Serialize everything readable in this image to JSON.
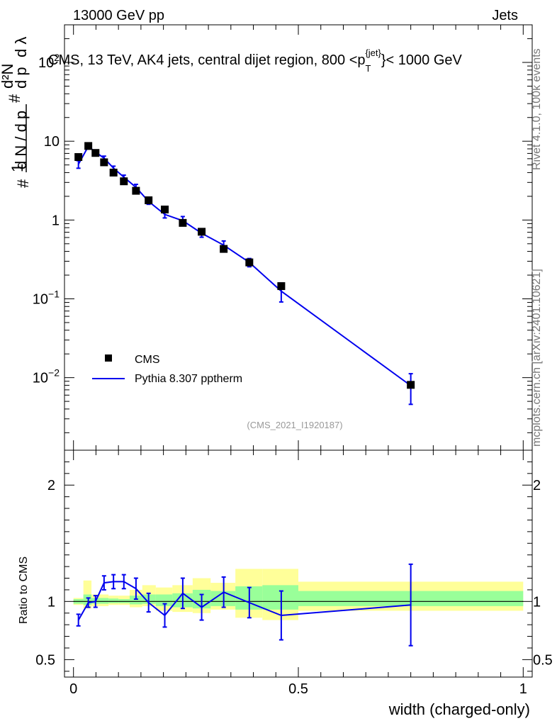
{
  "header": {
    "left": "13000 GeV pp",
    "right": "Jets"
  },
  "side": {
    "rivet": "Rivet 4.1.0,  100k events",
    "mcplots": "mcplots.cern.ch [arXiv:2401.10621]"
  },
  "watermark": "(CMS_2021_I1920187)",
  "chart_data": [
    {
      "type": "scatter",
      "panel": "main",
      "title_parts": {
        "pre": "CMS, 13 TeV, AK4 jets, central dijet region, 800 <p",
        "sub": "T",
        "sup": "{jet}",
        "post": "}< 1000 GeV"
      },
      "ylabel": "1/dN/dpT # d²N/dpT dλ",
      "yscale": "log",
      "ylim": [
        0.0012,
        300
      ],
      "xlim": [
        -0.02,
        1.02
      ],
      "ytick_labels": [
        {
          "v": 100,
          "base": "10",
          "exp": "2"
        },
        {
          "v": 10,
          "base": "10",
          "exp": ""
        },
        {
          "v": 1,
          "base": "1",
          "exp": ""
        },
        {
          "v": 0.1,
          "base": "10",
          "exp": "−1"
        },
        {
          "v": 0.01,
          "base": "10",
          "exp": "−2"
        }
      ],
      "legend": [
        {
          "name": "CMS",
          "marker": "square"
        },
        {
          "name": "Pythia 8.307 pptherm",
          "marker": "line"
        }
      ],
      "series": [
        {
          "name": "CMS",
          "x": [
            0.011,
            0.033,
            0.049,
            0.068,
            0.089,
            0.112,
            0.139,
            0.167,
            0.203,
            0.243,
            0.285,
            0.334,
            0.391,
            0.462,
            0.75
          ],
          "y": [
            6.3,
            8.7,
            7.1,
            5.4,
            4.0,
            3.1,
            2.35,
            1.78,
            1.36,
            0.92,
            0.71,
            0.43,
            0.29,
            0.145,
            0.0081
          ]
        },
        {
          "name": "Pythia 8.307 pptherm",
          "x": [
            0.011,
            0.033,
            0.049,
            0.068,
            0.089,
            0.112,
            0.139,
            0.167,
            0.203,
            0.243,
            0.285,
            0.334,
            0.391,
            0.462,
            0.75
          ],
          "y": [
            5.1,
            8.6,
            7.3,
            6.1,
            4.55,
            3.5,
            2.6,
            1.72,
            1.18,
            0.98,
            0.68,
            0.48,
            0.29,
            0.125,
            0.0079
          ],
          "err": [
            0.11,
            0.05,
            0.05,
            0.06,
            0.06,
            0.06,
            0.09,
            0.08,
            0.1,
            0.13,
            0.11,
            0.13,
            0.12,
            0.27,
            0.42
          ]
        }
      ]
    },
    {
      "type": "line",
      "panel": "ratio",
      "ylabel": "Ratio to CMS",
      "xlabel": "width (charged-only)",
      "ylim": [
        0.35,
        2.3
      ],
      "xlim": [
        -0.02,
        1.02
      ],
      "yticks": [
        0.5,
        1,
        2
      ],
      "ytick_labels": [
        "0.5",
        "1",
        "2"
      ],
      "xticks": [
        0,
        0.5,
        1
      ],
      "xtick_labels": [
        "0",
        "0.5",
        "1"
      ],
      "band_edges": [
        0,
        0.022,
        0.04,
        0.058,
        0.078,
        0.1,
        0.125,
        0.153,
        0.183,
        0.22,
        0.265,
        0.305,
        0.36,
        0.42,
        0.5,
        1.0
      ],
      "band_outer": [
        [
          0.97,
          1.03
        ],
        [
          0.94,
          1.18
        ],
        [
          0.96,
          1.06
        ],
        [
          0.96,
          1.06
        ],
        [
          0.97,
          1.05
        ],
        [
          0.97,
          1.05
        ],
        [
          0.95,
          1.1
        ],
        [
          0.96,
          1.14
        ],
        [
          0.92,
          1.12
        ],
        [
          0.91,
          1.14
        ],
        [
          0.9,
          1.2
        ],
        [
          0.93,
          1.16
        ],
        [
          0.86,
          1.28
        ],
        [
          0.84,
          1.28
        ],
        [
          0.92,
          1.17
        ]
      ],
      "band_inner": [
        [
          0.98,
          1.02
        ],
        [
          0.97,
          1.06
        ],
        [
          0.98,
          1.03
        ],
        [
          0.98,
          1.03
        ],
        [
          0.985,
          1.025
        ],
        [
          0.985,
          1.02
        ],
        [
          0.975,
          1.05
        ],
        [
          0.98,
          1.06
        ],
        [
          0.96,
          1.06
        ],
        [
          0.95,
          1.07
        ],
        [
          0.94,
          1.1
        ],
        [
          0.96,
          1.09
        ],
        [
          0.93,
          1.13
        ],
        [
          0.93,
          1.14
        ],
        [
          0.96,
          1.09
        ]
      ],
      "series": [
        {
          "name": "Pythia 8.307 pptherm",
          "x": [
            0.011,
            0.033,
            0.049,
            0.068,
            0.089,
            0.112,
            0.139,
            0.167,
            0.203,
            0.243,
            0.285,
            0.334,
            0.391,
            0.462,
            0.75
          ],
          "y": [
            0.84,
            0.99,
            1.0,
            1.16,
            1.17,
            1.17,
            1.11,
            0.99,
            0.88,
            1.07,
            0.95,
            1.08,
            0.99,
            0.88,
            0.97
          ],
          "err": [
            0.05,
            0.04,
            0.05,
            0.06,
            0.06,
            0.06,
            0.09,
            0.08,
            0.1,
            0.13,
            0.11,
            0.13,
            0.13,
            0.21,
            0.35
          ]
        }
      ]
    }
  ]
}
